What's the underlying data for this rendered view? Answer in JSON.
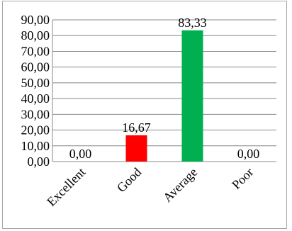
{
  "chart_data": {
    "type": "bar",
    "categories": [
      "Excellent",
      "Good",
      "Average",
      "Poor"
    ],
    "values": [
      0.0,
      16.67,
      83.33,
      0.0
    ],
    "data_labels": [
      "0,00",
      "16,67",
      "83,33",
      "0,00"
    ],
    "bar_colors": [
      "#ff0000",
      "#ff0000",
      "#00b050",
      "#00b050"
    ],
    "ylim": [
      0,
      90
    ],
    "yticks": [
      0,
      10,
      20,
      30,
      40,
      50,
      60,
      70,
      80,
      90
    ],
    "ytick_labels": [
      "0,00",
      "10,00",
      "20,00",
      "30,00",
      "40,00",
      "50,00",
      "60,00",
      "70,00",
      "80,00",
      "90,00"
    ],
    "grid": true,
    "legend": "none",
    "title": "",
    "xlabel": "",
    "ylabel": ""
  }
}
